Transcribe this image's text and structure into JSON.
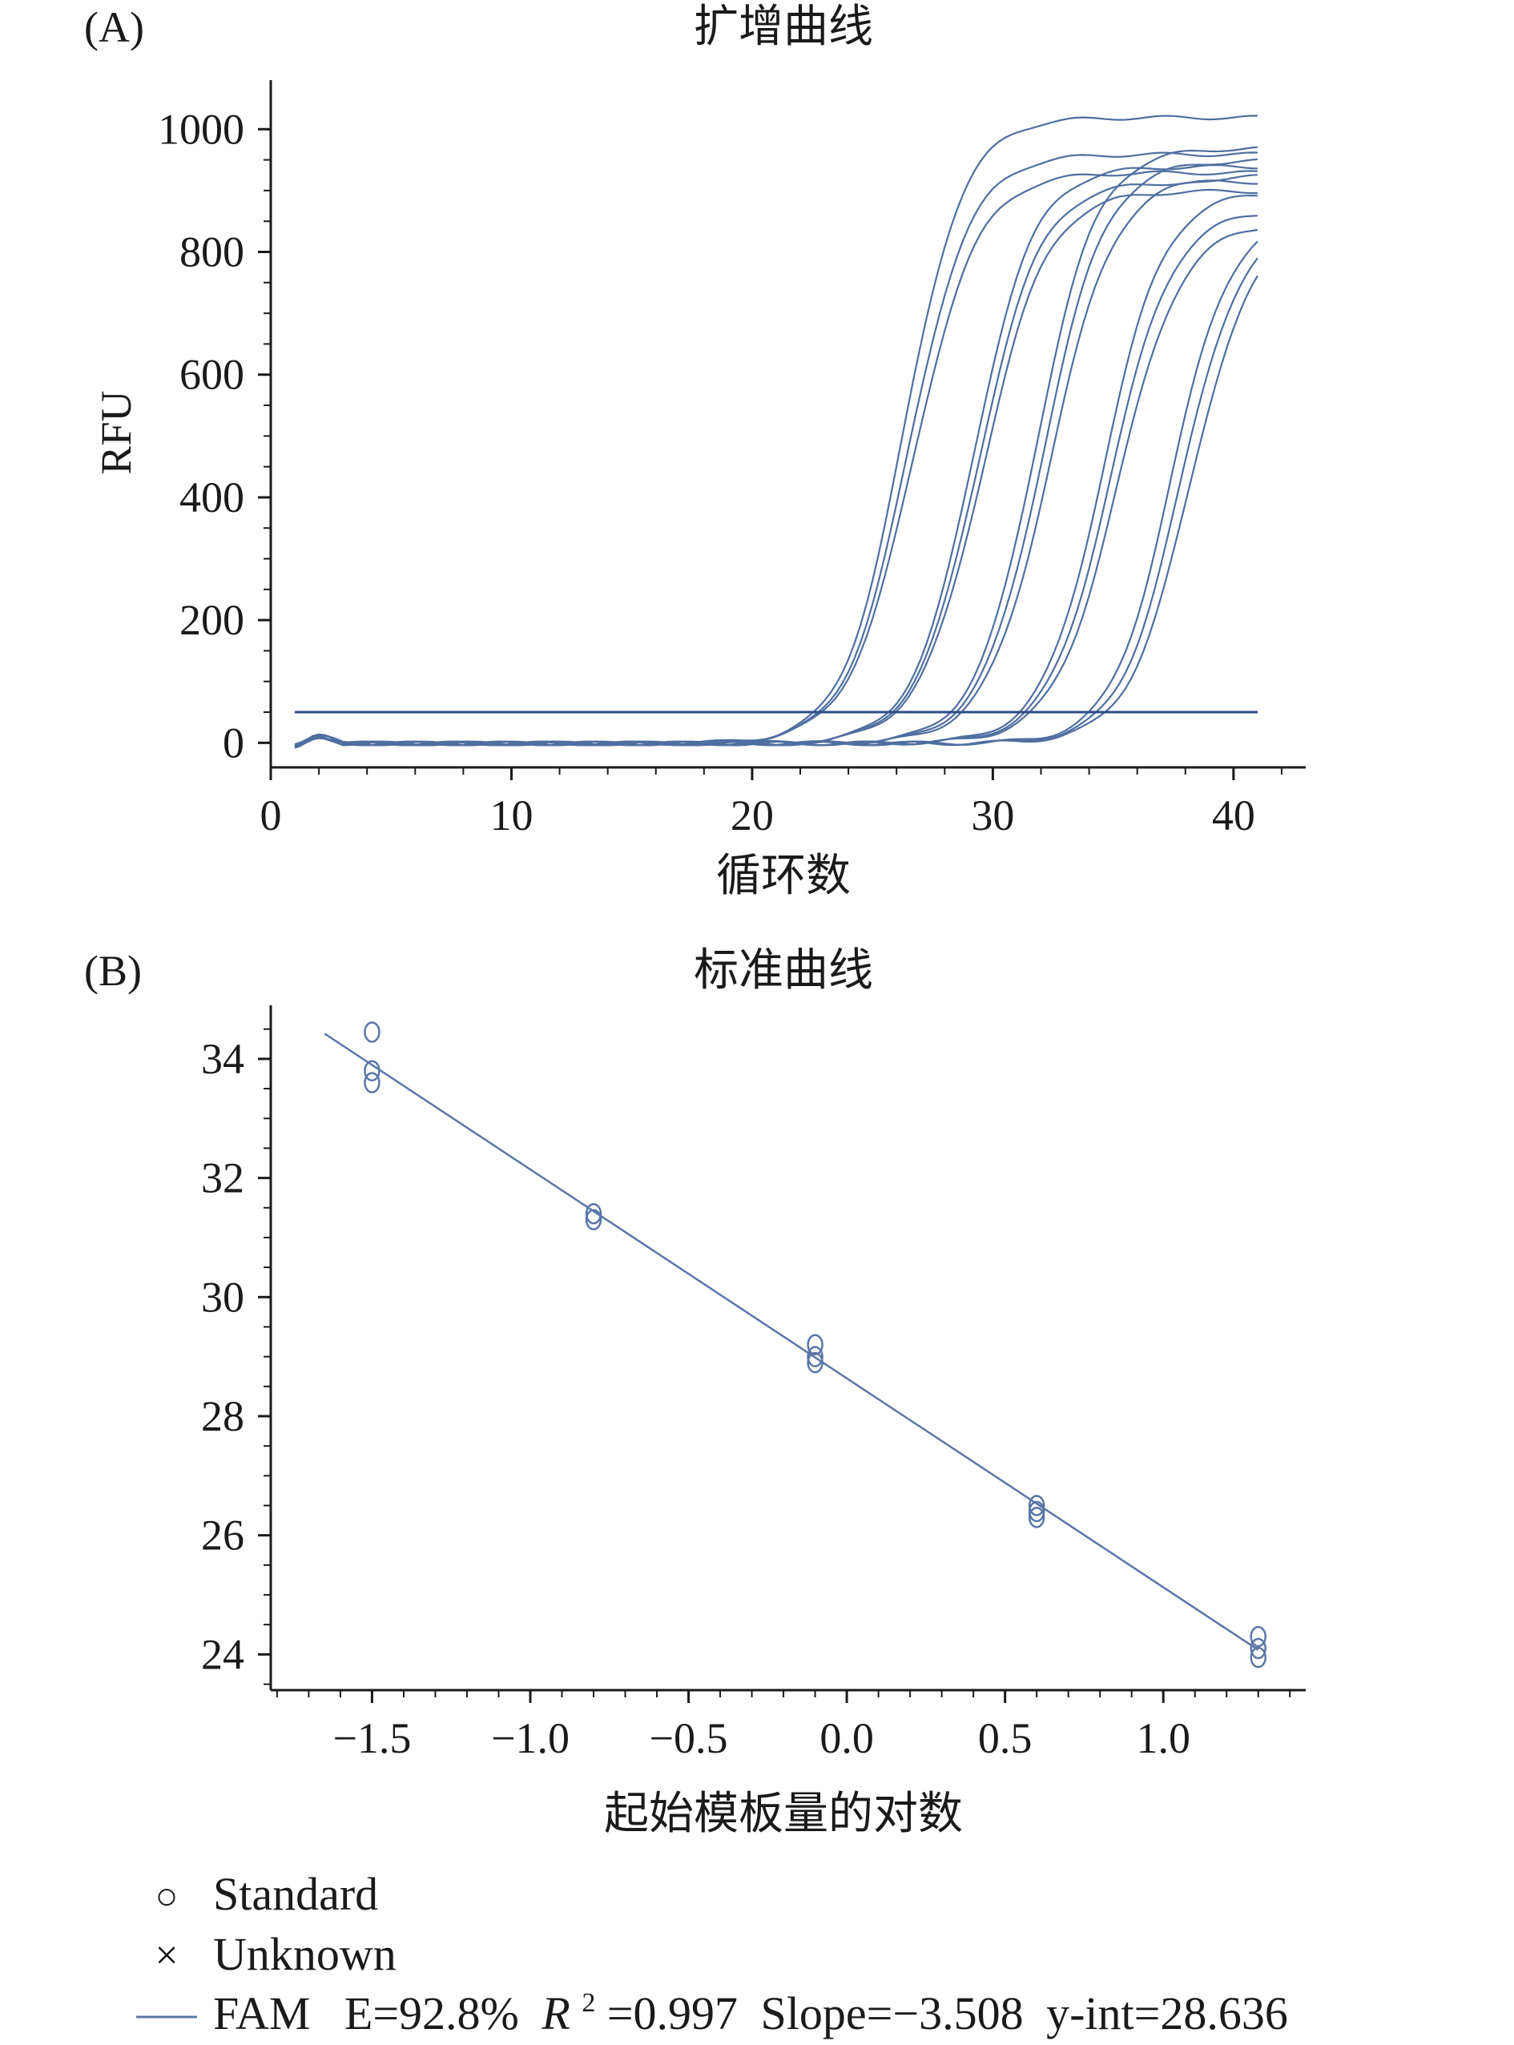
{
  "chart_data": [
    {
      "type": "line",
      "panel_label": "(A)",
      "title": "扩增曲线",
      "xlabel": "循环数",
      "ylabel": "RFU",
      "xlim": [
        0,
        43
      ],
      "ylim": [
        -40,
        1080
      ],
      "xticks": [
        "0",
        "10",
        "20",
        "30",
        "40"
      ],
      "yticks": [
        "0",
        "200",
        "400",
        "600",
        "800",
        "1000"
      ],
      "threshold": 50,
      "line_color": "#4f6fa0",
      "threshold_color": "#2e4d87",
      "curves": [
        {
          "ct": 26.3,
          "plateau": 1020,
          "k": 0.8
        },
        {
          "ct": 26.5,
          "plateau": 960,
          "k": 0.78
        },
        {
          "ct": 26.7,
          "plateau": 930,
          "k": 0.75
        },
        {
          "ct": 29.2,
          "plateau": 940,
          "k": 0.8
        },
        {
          "ct": 29.4,
          "plateau": 915,
          "k": 0.78
        },
        {
          "ct": 29.6,
          "plateau": 900,
          "k": 0.76
        },
        {
          "ct": 31.8,
          "plateau": 970,
          "k": 0.8
        },
        {
          "ct": 32.1,
          "plateau": 950,
          "k": 0.78
        },
        {
          "ct": 32.4,
          "plateau": 925,
          "k": 0.76
        },
        {
          "ct": 34.6,
          "plateau": 900,
          "k": 0.8
        },
        {
          "ct": 34.9,
          "plateau": 870,
          "k": 0.78
        },
        {
          "ct": 35.2,
          "plateau": 850,
          "k": 0.76
        },
        {
          "ct": 37.4,
          "plateau": 860,
          "k": 0.82
        },
        {
          "ct": 37.8,
          "plateau": 850,
          "k": 0.8
        },
        {
          "ct": 38.2,
          "plateau": 845,
          "k": 0.78
        }
      ]
    },
    {
      "type": "scatter",
      "panel_label": "(B)",
      "title": "标准曲线",
      "xlabel": "起始模板量的对数",
      "ylabel": "",
      "xlim": [
        -1.82,
        1.45
      ],
      "ylim": [
        23.4,
        34.9
      ],
      "xticks": [
        "−1.5",
        "−1.0",
        "−0.5",
        "0.0",
        "0.5",
        "1.0"
      ],
      "xtick_values": [
        -1.5,
        -1.0,
        -0.5,
        0.0,
        0.5,
        1.0
      ],
      "yticks": [
        "24",
        "26",
        "28",
        "30",
        "32",
        "34"
      ],
      "ytick_values": [
        24,
        26,
        28,
        30,
        32,
        34
      ],
      "points": [
        {
          "x": -1.5,
          "y": 34.45
        },
        {
          "x": -1.5,
          "y": 33.8
        },
        {
          "x": -1.5,
          "y": 33.6
        },
        {
          "x": -0.8,
          "y": 31.4
        },
        {
          "x": -0.8,
          "y": 31.3
        },
        {
          "x": -0.1,
          "y": 29.2
        },
        {
          "x": -0.1,
          "y": 29.0
        },
        {
          "x": -0.1,
          "y": 28.9
        },
        {
          "x": 0.6,
          "y": 26.5
        },
        {
          "x": 0.6,
          "y": 26.4
        },
        {
          "x": 0.6,
          "y": 26.3
        },
        {
          "x": 1.3,
          "y": 24.3
        },
        {
          "x": 1.3,
          "y": 24.1
        },
        {
          "x": 1.3,
          "y": 23.95
        }
      ],
      "fit": {
        "slope": -3.508,
        "intercept": 28.636,
        "x_range": [
          -1.65,
          1.3
        ]
      },
      "marker_color": "#5a77a6",
      "line_color": "#5a77a6",
      "legend": {
        "placement": "bottom-left",
        "standard_label": "Standard",
        "unknown_label": "Unknown",
        "fam_label": "FAM",
        "efficiency": "E=92.8%",
        "r_label": "R",
        "r_sup": "2",
        "r_value": "=0.997",
        "slope": "Slope=−3.508",
        "yint": "y-int=28.636",
        "standard_symbol": "○",
        "unknown_symbol": "×"
      }
    }
  ]
}
